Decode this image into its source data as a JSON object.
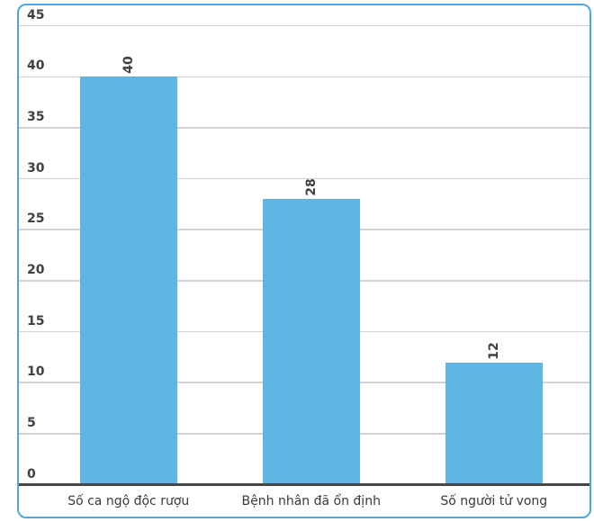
{
  "page": {
    "background": "#ffffff"
  },
  "card": {
    "border_color": "#4FA8DC"
  },
  "chart_data": {
    "type": "bar",
    "title": "",
    "xlabel": "",
    "ylabel": "",
    "categories": [
      "Số ca ngộ độc rượu",
      "Bệnh nhân đã ổn định",
      "Số người tử vong"
    ],
    "values": [
      40,
      28,
      12
    ],
    "bar_value_labels": [
      "40",
      "28",
      "12"
    ],
    "bar_value_label_rotation_deg": -90,
    "ylim": [
      0,
      45
    ],
    "yticks": [
      45,
      40,
      35,
      30,
      25,
      20,
      15,
      10,
      5,
      0
    ],
    "grid": true,
    "legend": "none",
    "colors": {
      "bar": "#5CB5E2",
      "gridline": "#d2d2d2",
      "axis_line": "#474747",
      "tick_text": "#404040",
      "value_text": "#404040",
      "category_text": "#3a3a3a"
    }
  }
}
